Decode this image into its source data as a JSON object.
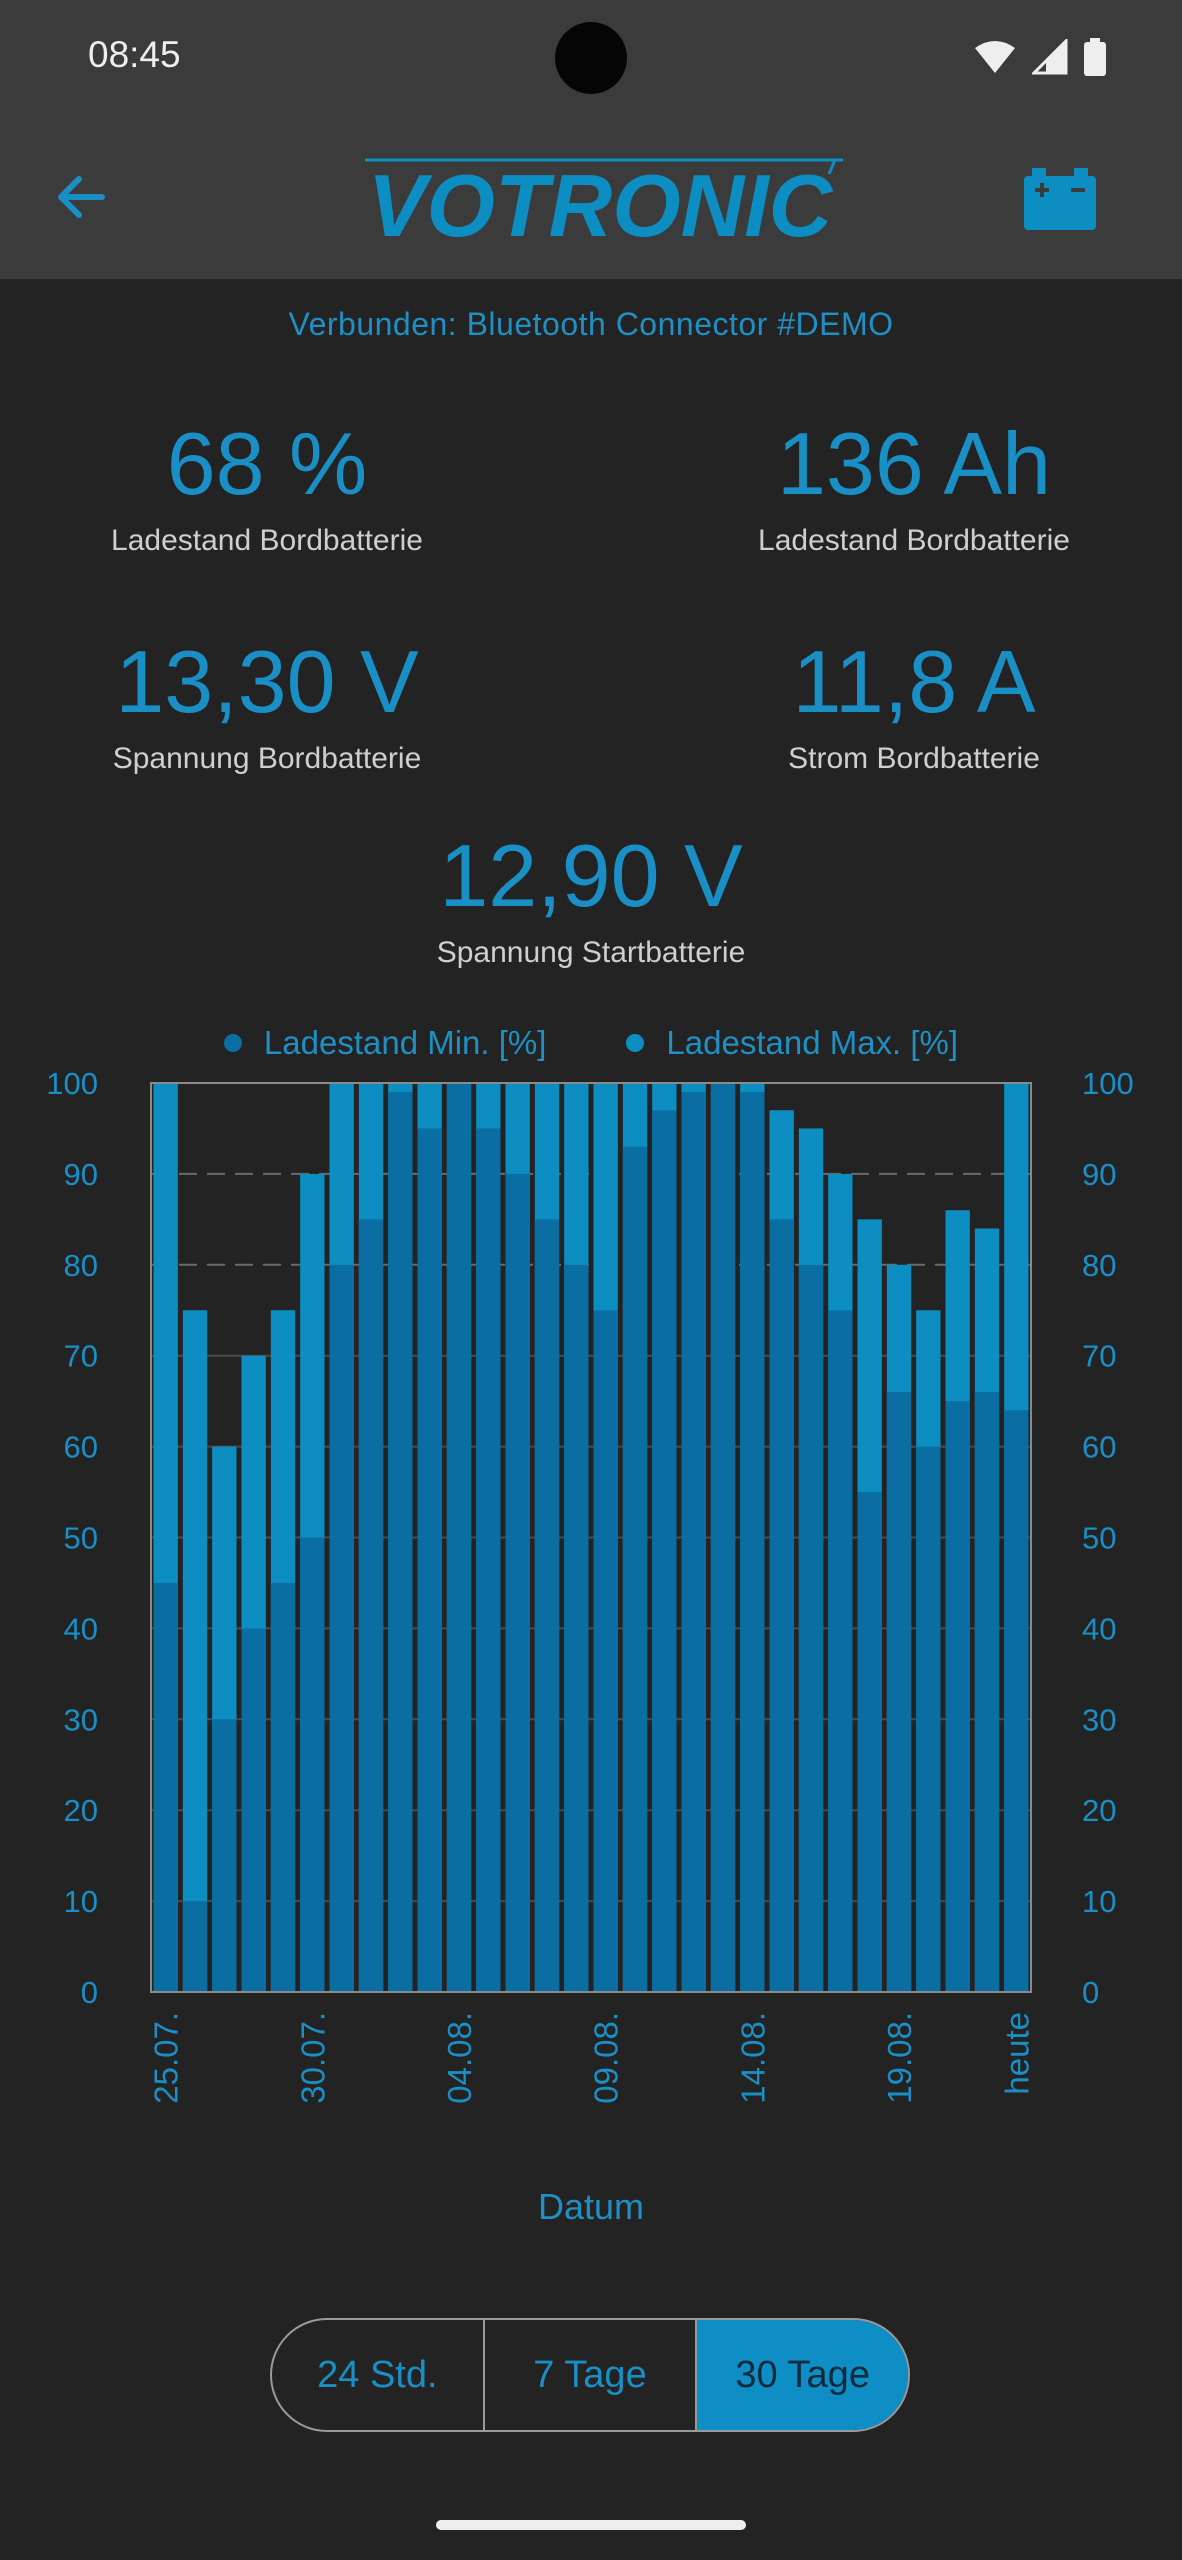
{
  "status_bar": {
    "time": "08:45"
  },
  "app_bar": {
    "logo_text": "VOTRONIC"
  },
  "connection_text": "Verbunden: Bluetooth Connector #DEMO",
  "metrics": [
    {
      "value": "68 %",
      "label": "Ladestand Bordbatterie"
    },
    {
      "value": "136 Ah",
      "label": "Ladestand Bordbatterie"
    },
    {
      "value": "13,30 V",
      "label": "Spannung Bordbatterie"
    },
    {
      "value": "11,8 A",
      "label": "Strom Bordbatterie"
    },
    {
      "value": "12,90 V",
      "label": "Spannung Startbatterie"
    }
  ],
  "colors": {
    "accent": "#1a8fc6",
    "min_series": "#0a6ea3",
    "max_series": "#0d8ec3",
    "background": "#232323",
    "bar_background": "#3b3b3b"
  },
  "chart_data": {
    "type": "bar",
    "series": [
      {
        "name": "Ladestand Min. [%]",
        "values": [
          45,
          10,
          30,
          40,
          45,
          50,
          80,
          85,
          99,
          95,
          100,
          95,
          90,
          85,
          80,
          75,
          93,
          97,
          99,
          100,
          99,
          85,
          80,
          75,
          55,
          66,
          60,
          65,
          66,
          64
        ]
      },
      {
        "name": "Ladestand Max. [%]",
        "values": [
          100,
          75,
          60,
          70,
          75,
          90,
          100,
          100,
          100,
          100,
          100,
          100,
          100,
          100,
          100,
          100,
          100,
          100,
          100,
          100,
          100,
          97,
          95,
          90,
          85,
          80,
          75,
          86,
          84,
          100
        ]
      }
    ],
    "x_tick_labels": [
      "25.07.",
      "30.07.",
      "04.08.",
      "09.08.",
      "14.08.",
      "19.08.",
      "heute"
    ],
    "y_ticks": [
      0,
      10,
      20,
      30,
      40,
      50,
      60,
      70,
      80,
      90,
      100
    ],
    "ylim": [
      0,
      100
    ],
    "xlabel": "Datum",
    "legend_position": "top"
  },
  "range_selector": {
    "options": [
      "24 Std.",
      "7 Tage",
      "30 Tage"
    ],
    "selected": "30 Tage"
  }
}
